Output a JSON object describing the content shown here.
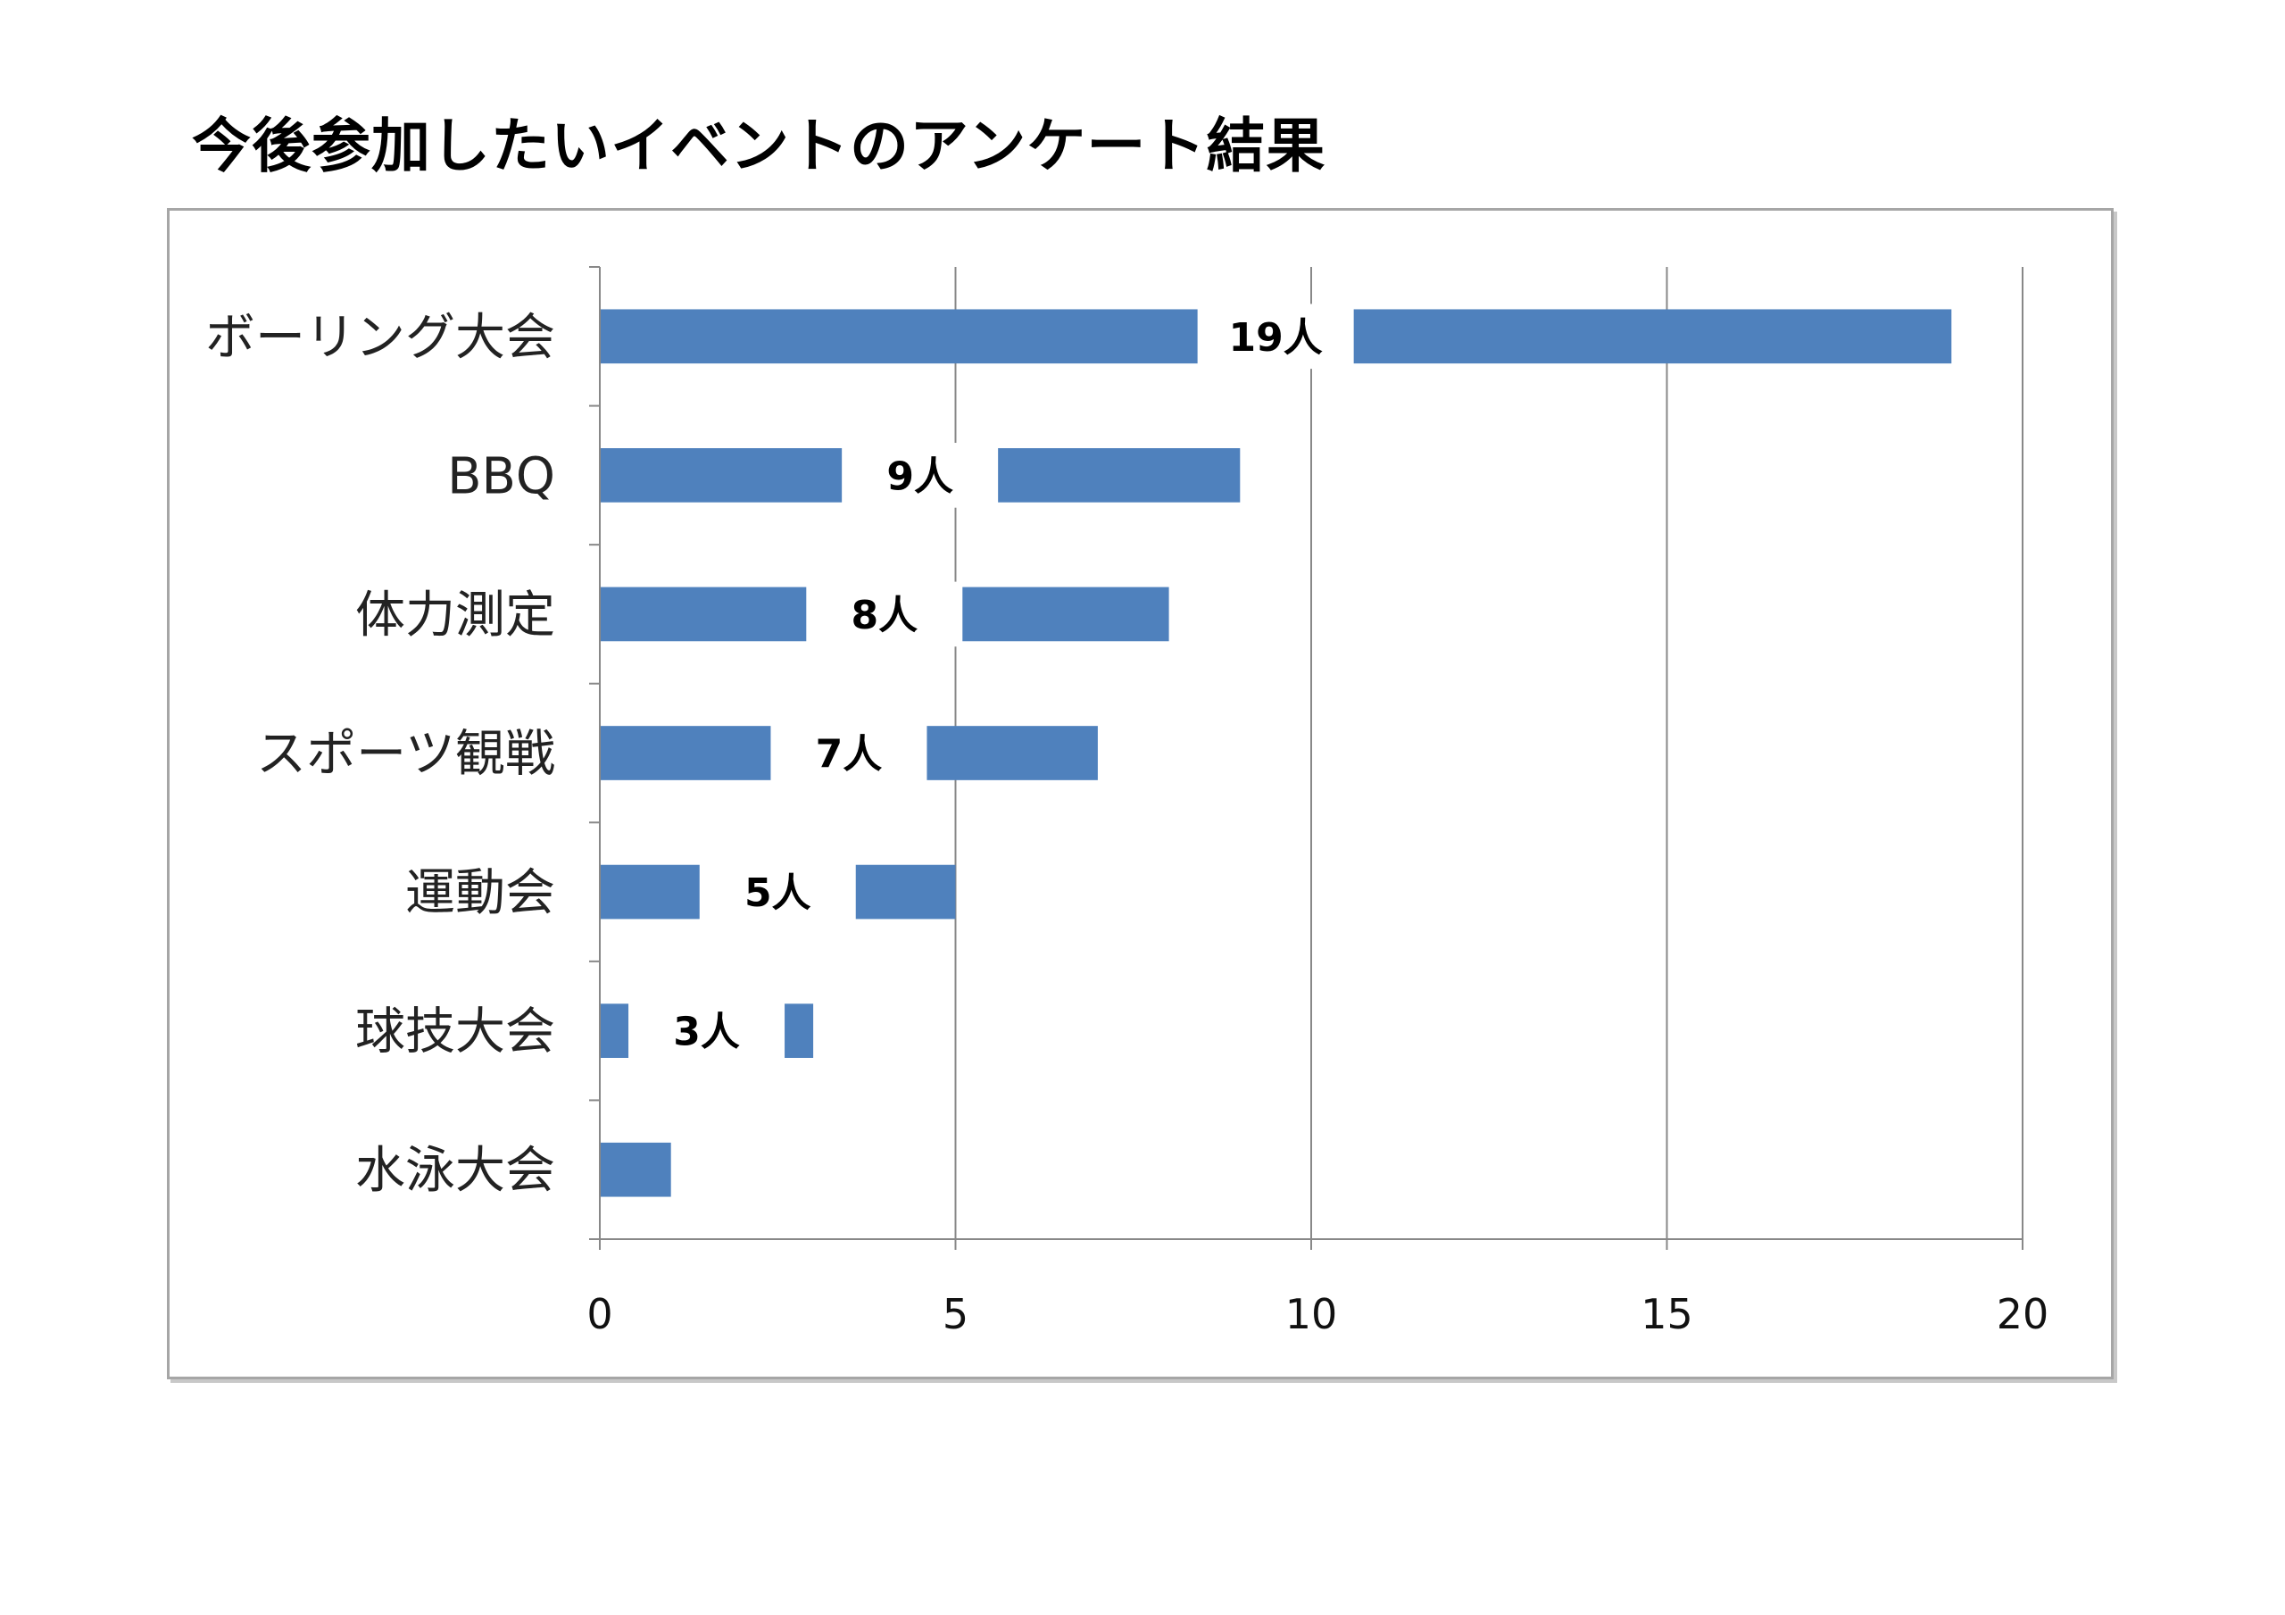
{
  "chart_data": {
    "type": "bar",
    "orientation": "horizontal",
    "title": "今後参加したいイベントのアンケート結果",
    "categories": [
      "ボーリング大会",
      "BBQ",
      "体力測定",
      "スポーツ観戦",
      "運動会",
      "球技大会",
      "水泳大会"
    ],
    "series": [
      {
        "values": [
          19,
          9,
          8,
          7,
          5,
          3,
          1
        ],
        "data_labels": [
          "19人",
          "9人",
          "8人",
          "7人",
          "5人",
          "3人",
          ""
        ]
      }
    ],
    "xlim": [
      0,
      20
    ],
    "xticks": [
      0,
      5,
      10,
      15,
      20
    ],
    "tick_labels": [
      "0",
      "5",
      "10",
      "15",
      "20"
    ],
    "xlabel": "",
    "ylabel": "",
    "grid": true,
    "legend": "none",
    "colors": {
      "bar": "#4f81bd",
      "grid": "#888888",
      "axis": "#888888",
      "frame": "#a6a6a6"
    }
  }
}
